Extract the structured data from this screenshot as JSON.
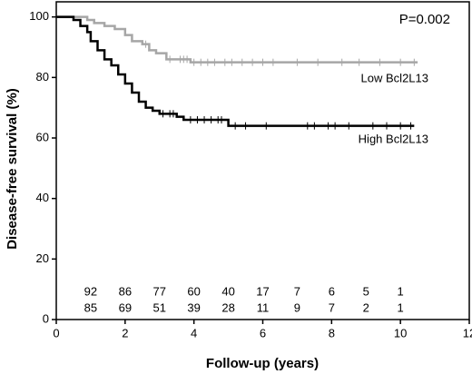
{
  "chart_data": {
    "type": "survival",
    "annotation": "P=0.002",
    "xlabel": "Follow-up (years)",
    "ylabel": "Disease-free survival (%)",
    "xlim": [
      0,
      12
    ],
    "xticks": [
      0,
      2,
      4,
      6,
      8,
      10,
      12
    ],
    "ylim": [
      0,
      105
    ],
    "yticks": [
      0,
      20,
      40,
      60,
      80,
      100
    ],
    "series": [
      {
        "name": "Low Bcl2L13",
        "color": "#a6a6a6",
        "x": [
          0,
          0.9,
          1.1,
          1.4,
          1.7,
          2.0,
          2.2,
          2.5,
          2.7,
          2.9,
          3.2,
          3.5,
          3.9,
          10.5
        ],
        "values": [
          100,
          99,
          98,
          97,
          96,
          94,
          92,
          91,
          89,
          88,
          86,
          86,
          85,
          85
        ],
        "censored": [
          2.6,
          3.3,
          3.6,
          3.7,
          3.8,
          4.0,
          4.2,
          4.4,
          4.6,
          4.9,
          5.1,
          5.4,
          5.7,
          6.0,
          6.3,
          7.0,
          7.6,
          8.3,
          8.8,
          9.4,
          10.0,
          10.4
        ]
      },
      {
        "name": "High Bcl2L13",
        "color": "#000000",
        "x": [
          0,
          0.5,
          0.7,
          0.9,
          1.0,
          1.2,
          1.4,
          1.6,
          1.8,
          2.0,
          2.2,
          2.4,
          2.6,
          2.8,
          3.0,
          3.5,
          3.7,
          5.0,
          10.4
        ],
        "values": [
          100,
          99,
          97,
          95,
          92,
          89,
          86,
          84,
          81,
          78,
          75,
          72,
          70,
          69,
          68,
          67,
          66,
          64,
          64
        ],
        "censored": [
          3.1,
          3.3,
          3.4,
          3.9,
          4.1,
          4.3,
          4.5,
          4.7,
          4.8,
          5.2,
          5.5,
          6.1,
          7.3,
          7.5,
          7.9,
          8.1,
          8.5,
          9.2,
          9.6,
          10.0,
          10.3
        ]
      }
    ],
    "at_risk_x": [
      1,
      2,
      3,
      4,
      5,
      6,
      7,
      8,
      9,
      10
    ],
    "at_risk": [
      [
        92,
        86,
        77,
        60,
        40,
        17,
        7,
        6,
        5,
        1
      ],
      [
        85,
        69,
        51,
        39,
        28,
        11,
        9,
        7,
        2,
        1
      ]
    ]
  }
}
